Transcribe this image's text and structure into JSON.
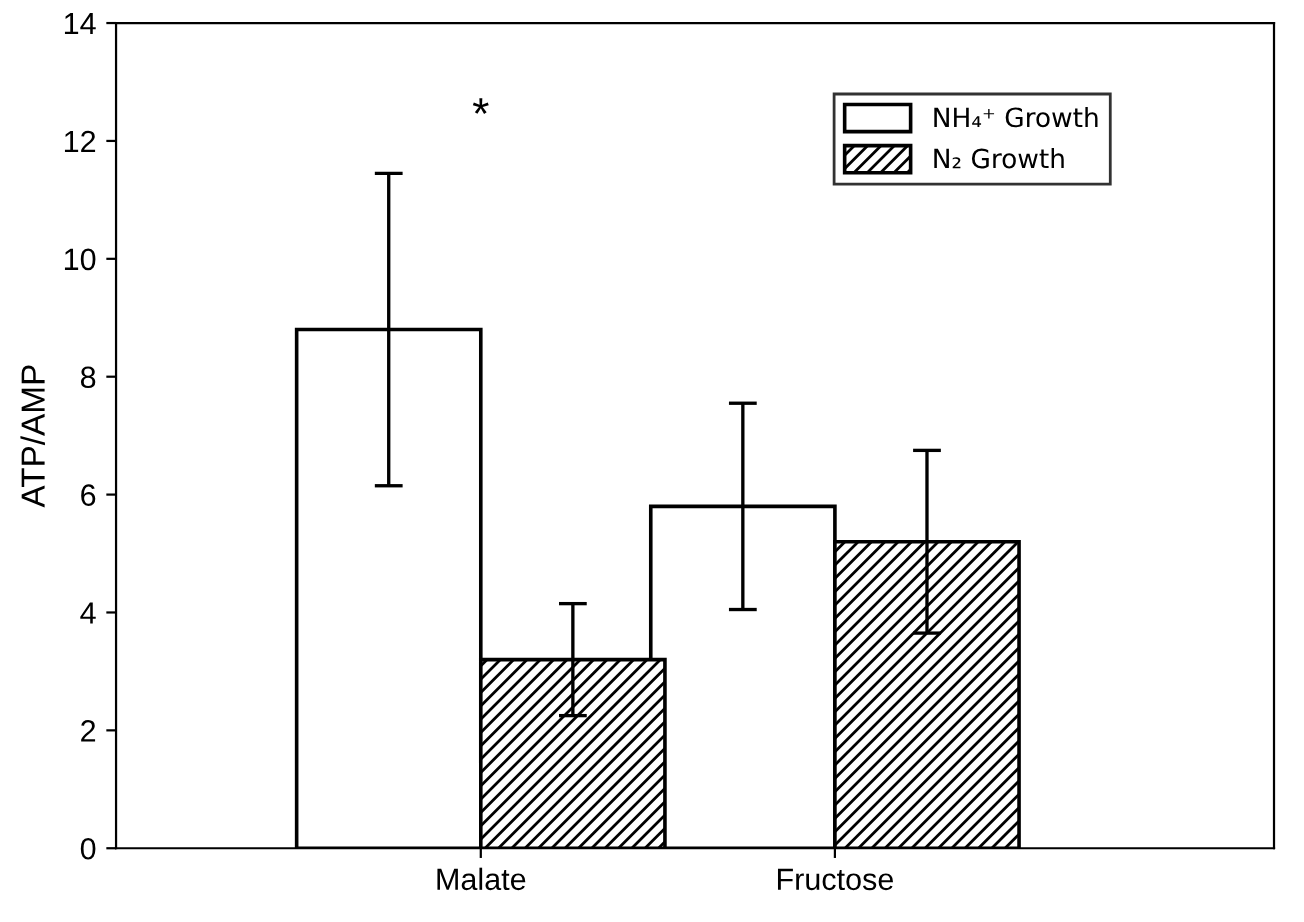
{
  "chart_data": {
    "type": "bar",
    "ylabel": "ATP/AMP",
    "categories": [
      "Malate",
      "Fructose"
    ],
    "series": [
      {
        "name": "NH₄⁺ Growth",
        "color": "#ffffff",
        "values": [
          8.8,
          5.8
        ],
        "errors": [
          2.65,
          1.75
        ]
      },
      {
        "name": "N₂ Growth",
        "color": "#000000",
        "values": [
          3.2,
          5.2
        ],
        "errors": [
          0.95,
          1.55
        ]
      }
    ],
    "annotations": [
      "*"
    ],
    "ylim": [
      0,
      14
    ],
    "yticks": [
      0,
      2,
      4,
      6,
      8,
      10,
      12,
      14
    ],
    "grid": false,
    "legend": "top right"
  }
}
